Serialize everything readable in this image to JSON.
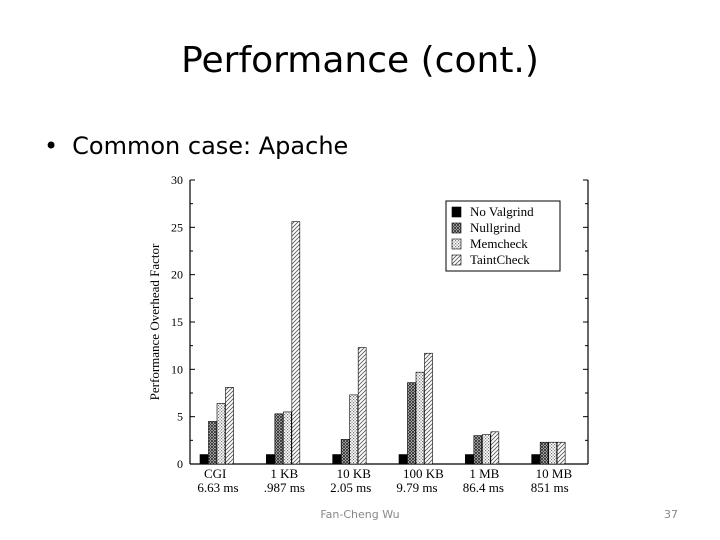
{
  "slide": {
    "title": "Performance (cont.)",
    "bullet": "Common case: Apache",
    "footer": "Fan-Cheng Wu",
    "page_number": "37"
  },
  "chart_data": {
    "type": "bar",
    "ylabel": "Performance Overhead Factor",
    "ylim": [
      0,
      30
    ],
    "yticks": [
      0,
      5,
      10,
      15,
      20,
      25,
      30
    ],
    "categories": [
      {
        "name": "CGI",
        "sub": "6.63 ms"
      },
      {
        "name": "1 KB",
        "sub": ".987 ms"
      },
      {
        "name": "10 KB",
        "sub": "2.05 ms"
      },
      {
        "name": "100 KB",
        "sub": "9.79 ms"
      },
      {
        "name": "1 MB",
        "sub": "86.4 ms"
      },
      {
        "name": "10 MB",
        "sub": "851 ms"
      }
    ],
    "series": [
      {
        "name": "No Valgrind",
        "values": [
          1,
          1,
          1,
          1,
          1,
          1
        ],
        "fill": "solid"
      },
      {
        "name": "Nullgrind",
        "values": [
          4.5,
          5.3,
          2.6,
          8.6,
          3.0,
          2.3
        ],
        "fill": "dense-hatch"
      },
      {
        "name": "Memcheck",
        "values": [
          6.4,
          5.5,
          7.3,
          9.7,
          3.1,
          2.3
        ],
        "fill": "dots"
      },
      {
        "name": "TaintCheck",
        "values": [
          8.1,
          25.6,
          12.3,
          11.7,
          3.4,
          2.3
        ],
        "fill": "diagonal"
      }
    ],
    "legend_position": "top-right"
  }
}
